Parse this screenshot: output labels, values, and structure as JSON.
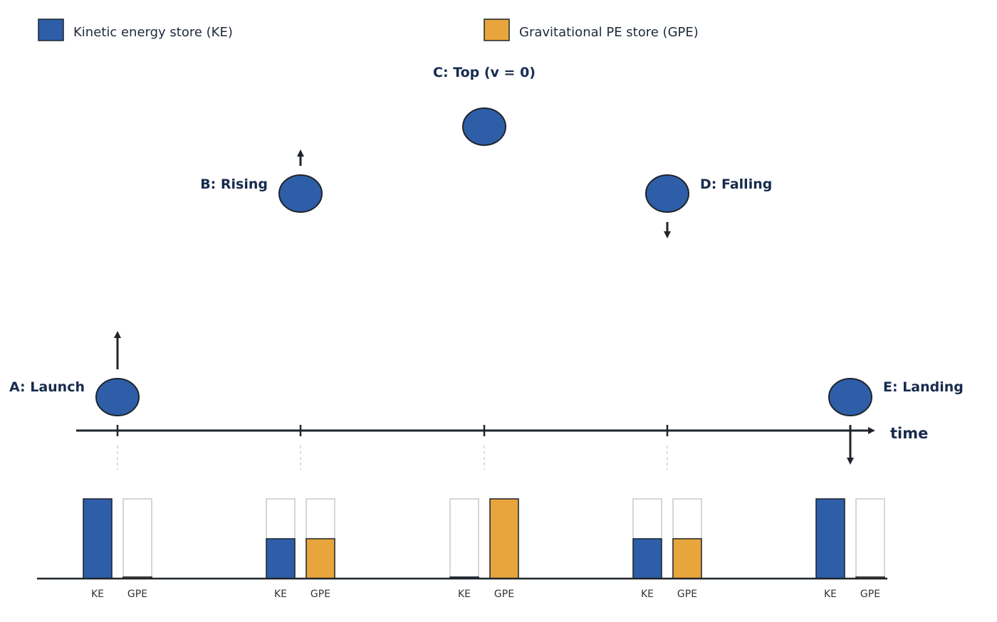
{
  "legend": {
    "ke_label": "Kinetic energy store (KE)",
    "gpe_label": "Gravitational PE store (GPE)"
  },
  "colors": {
    "ke": "#2e5ea8",
    "gpe": "#e8a53c",
    "ink": "#1f252b",
    "label": "#172b4d",
    "empty_outline": "#c9c9c9",
    "guide": "#cfcfcf"
  },
  "axis": {
    "time_label": "time"
  },
  "stages": [
    {
      "id": "a",
      "label": "A: Launch",
      "ke": 1.0,
      "gpe": 0.02,
      "velocity": "up"
    },
    {
      "id": "b",
      "label": "B: Rising",
      "ke": 0.5,
      "gpe": 0.5,
      "velocity": "up"
    },
    {
      "id": "c",
      "label": "C: Top (v = 0)",
      "ke": 0.02,
      "gpe": 1.0,
      "velocity": "none"
    },
    {
      "id": "d",
      "label": "D: Falling",
      "ke": 0.5,
      "gpe": 0.5,
      "velocity": "down"
    },
    {
      "id": "e",
      "label": "E: Landing",
      "ke": 1.0,
      "gpe": 0.02,
      "velocity": "down"
    }
  ],
  "bar_labels": {
    "ke": "KE",
    "gpe": "GPE"
  }
}
